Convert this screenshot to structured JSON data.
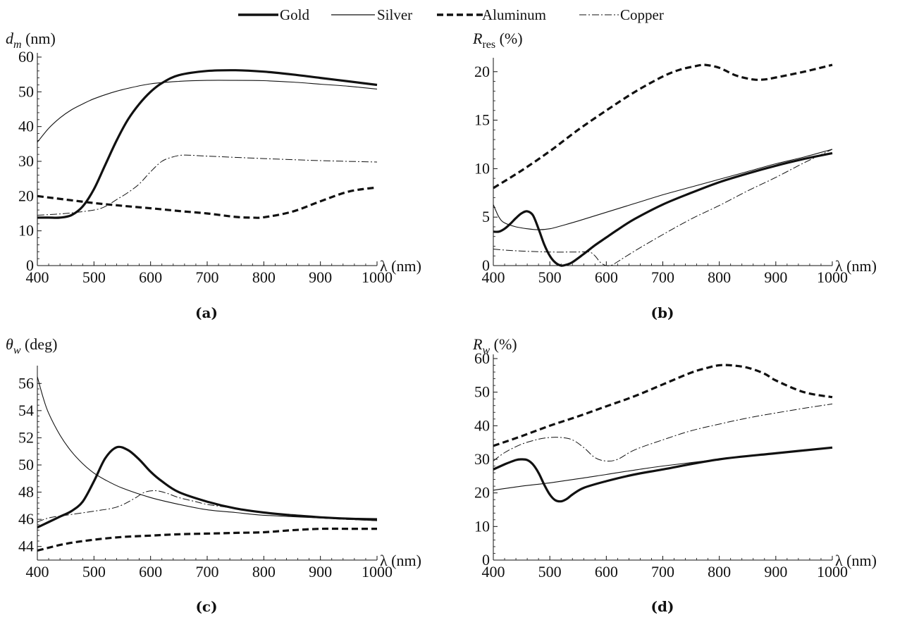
{
  "legend": [
    {
      "name": "Gold",
      "style": "thick"
    },
    {
      "name": "Silver",
      "style": "thin"
    },
    {
      "name": "Aluminum",
      "style": "dashed"
    },
    {
      "name": "Copper",
      "style": "dashdot"
    }
  ],
  "chart_data": [
    {
      "type": "line",
      "caption": "(a)",
      "ylabel_sym": "d",
      "ylabel_sub": "m",
      "ylabel_unit": " (nm)",
      "xlabel": "λ (nm)",
      "xlim": [
        400,
        1000
      ],
      "ylim": [
        0,
        60
      ],
      "xticks": [
        400,
        500,
        600,
        700,
        800,
        900,
        1000
      ],
      "yticks": [
        0,
        10,
        20,
        30,
        40,
        50,
        60
      ],
      "series": [
        {
          "name": "Gold",
          "style": "thick",
          "x": [
            400,
            420,
            440,
            460,
            480,
            500,
            520,
            540,
            560,
            580,
            600,
            620,
            650,
            700,
            750,
            800,
            850,
            900,
            950,
            1000
          ],
          "y": [
            13.8,
            13.8,
            13.8,
            14.5,
            17,
            22,
            29,
            36,
            42,
            46.5,
            50,
            52.5,
            54.8,
            56,
            56.2,
            55.8,
            55,
            54,
            53,
            52
          ]
        },
        {
          "name": "Silver",
          "style": "thin",
          "x": [
            400,
            420,
            440,
            460,
            480,
            500,
            530,
            560,
            600,
            650,
            700,
            750,
            800,
            850,
            900,
            950,
            1000
          ],
          "y": [
            35.5,
            39.5,
            42.5,
            44.8,
            46.5,
            48,
            49.7,
            51,
            52.3,
            53,
            53.3,
            53.3,
            53.2,
            52.8,
            52.2,
            51.6,
            50.8
          ]
        },
        {
          "name": "Aluminum",
          "style": "dashed",
          "x": [
            400,
            450,
            500,
            550,
            600,
            650,
            700,
            750,
            780,
            800,
            850,
            900,
            950,
            1000
          ],
          "y": [
            20,
            19,
            18,
            17.2,
            16.5,
            15.7,
            15,
            14,
            13.8,
            13.9,
            15.5,
            18.5,
            21.3,
            22.5
          ]
        },
        {
          "name": "Copper",
          "style": "dashdot",
          "x": [
            400,
            450,
            500,
            520,
            540,
            560,
            580,
            600,
            620,
            640,
            660,
            700,
            800,
            900,
            1000
          ],
          "y": [
            14.5,
            15,
            16,
            17,
            19,
            21,
            23.5,
            27,
            30,
            31.3,
            31.8,
            31.5,
            30.8,
            30.2,
            29.8
          ]
        }
      ]
    },
    {
      "type": "line",
      "caption": "(b)",
      "ylabel_sym": "R",
      "ylabel_sub": "res",
      "ylabel_unit": " (%)",
      "xlabel": "λ (nm)",
      "xlim": [
        400,
        1000
      ],
      "ylim": [
        0,
        21
      ],
      "xticks": [
        400,
        500,
        600,
        700,
        800,
        900,
        1000
      ],
      "yticks": [
        0,
        5,
        10,
        15,
        20
      ],
      "series": [
        {
          "name": "Gold",
          "style": "thick",
          "x": [
            400,
            410,
            420,
            430,
            440,
            450,
            460,
            470,
            480,
            490,
            500,
            510,
            520,
            530,
            540,
            560,
            580,
            600,
            620,
            650,
            700,
            750,
            800,
            850,
            900,
            950,
            1000
          ],
          "y": [
            3.5,
            3.5,
            3.8,
            4.3,
            4.9,
            5.4,
            5.6,
            5.2,
            3.8,
            2.2,
            1,
            0.3,
            0,
            0.1,
            0.35,
            1.2,
            2.1,
            2.9,
            3.7,
            4.8,
            6.3,
            7.5,
            8.6,
            9.5,
            10.3,
            11,
            11.6
          ]
        },
        {
          "name": "Silver",
          "style": "thin",
          "x": [
            400,
            410,
            420,
            440,
            460,
            480,
            500,
            520,
            550,
            600,
            650,
            700,
            750,
            800,
            850,
            900,
            950,
            1000
          ],
          "y": [
            6.3,
            5,
            4.4,
            4,
            3.8,
            3.7,
            3.8,
            4.1,
            4.6,
            5.5,
            6.4,
            7.3,
            8.1,
            8.9,
            9.7,
            10.5,
            11.2,
            12
          ]
        },
        {
          "name": "Aluminum",
          "style": "dashed",
          "x": [
            400,
            450,
            500,
            550,
            600,
            650,
            700,
            730,
            760,
            775,
            800,
            830,
            860,
            880,
            900,
            950,
            1000
          ],
          "y": [
            8,
            9.8,
            11.8,
            14,
            16,
            17.9,
            19.5,
            20.2,
            20.6,
            20.7,
            20.4,
            19.6,
            19.2,
            19.2,
            19.4,
            20,
            20.7
          ]
        },
        {
          "name": "Copper",
          "style": "dashdot",
          "x": [
            400,
            420,
            450,
            500,
            550,
            570,
            580,
            590,
            600,
            610,
            620,
            650,
            700,
            750,
            800,
            850,
            900,
            950,
            1000
          ],
          "y": [
            1.7,
            1.6,
            1.5,
            1.4,
            1.4,
            1.4,
            1,
            0.3,
            0,
            0.05,
            0.4,
            1.5,
            3.2,
            4.8,
            6.2,
            7.7,
            9.1,
            10.6,
            12
          ]
        }
      ]
    },
    {
      "type": "line",
      "caption": "(c)",
      "ylabel_sym": "θ",
      "ylabel_sub": "w",
      "ylabel_unit": " (deg)",
      "xlabel": "λ (nm)",
      "xlim": [
        400,
        1000
      ],
      "ylim": [
        43,
        57
      ],
      "xticks": [
        400,
        500,
        600,
        700,
        800,
        900,
        1000
      ],
      "yticks": [
        44,
        46,
        48,
        50,
        52,
        54,
        56
      ],
      "series": [
        {
          "name": "Gold",
          "style": "thick",
          "x": [
            400,
            420,
            440,
            460,
            480,
            500,
            520,
            540,
            560,
            580,
            600,
            620,
            650,
            700,
            750,
            800,
            850,
            900,
            950,
            1000
          ],
          "y": [
            45.4,
            45.8,
            46.2,
            46.6,
            47.3,
            48.8,
            50.5,
            51.3,
            51.1,
            50.4,
            49.5,
            48.8,
            48,
            47.3,
            46.8,
            46.5,
            46.3,
            46.15,
            46.05,
            46
          ]
        },
        {
          "name": "Silver",
          "style": "thin",
          "x": [
            400,
            410,
            420,
            440,
            460,
            480,
            500,
            520,
            550,
            600,
            650,
            700,
            750,
            800,
            900,
            1000
          ],
          "y": [
            56.5,
            55,
            53.8,
            52.2,
            51,
            50.1,
            49.4,
            48.9,
            48.3,
            47.6,
            47.1,
            46.7,
            46.5,
            46.3,
            46.1,
            45.9
          ]
        },
        {
          "name": "Aluminum",
          "style": "dashed",
          "x": [
            400,
            450,
            500,
            550,
            600,
            650,
            700,
            750,
            800,
            850,
            900,
            950,
            1000
          ],
          "y": [
            43.7,
            44.2,
            44.5,
            44.7,
            44.8,
            44.9,
            44.95,
            45,
            45.05,
            45.2,
            45.3,
            45.3,
            45.3
          ]
        },
        {
          "name": "Copper",
          "style": "dashdot",
          "x": [
            400,
            420,
            450,
            500,
            540,
            570,
            590,
            610,
            630,
            650,
            680,
            700,
            750,
            800,
            900,
            1000
          ],
          "y": [
            45.8,
            46.1,
            46.3,
            46.6,
            46.9,
            47.5,
            48,
            48.1,
            47.9,
            47.6,
            47.3,
            47.1,
            46.8,
            46.5,
            46.1,
            45.9
          ]
        }
      ]
    },
    {
      "type": "line",
      "caption": "(d)",
      "ylabel_sym": "R",
      "ylabel_sub": "w",
      "ylabel_unit": " (%)",
      "xlabel": "λ (nm)",
      "xlim": [
        400,
        1000
      ],
      "ylim": [
        0,
        60
      ],
      "xticks": [
        400,
        500,
        600,
        700,
        800,
        900,
        1000
      ],
      "yticks": [
        0,
        10,
        20,
        30,
        40,
        50,
        60
      ],
      "series": [
        {
          "name": "Gold",
          "style": "thick",
          "x": [
            400,
            420,
            440,
            450,
            460,
            470,
            480,
            490,
            500,
            510,
            520,
            530,
            540,
            560,
            600,
            650,
            700,
            800,
            900,
            1000
          ],
          "y": [
            27,
            28.5,
            29.8,
            30,
            29.8,
            28.5,
            26,
            22.5,
            19.5,
            17.8,
            17.5,
            18.2,
            19.5,
            21.5,
            23.5,
            25.5,
            27,
            30,
            31.8,
            33.5
          ]
        },
        {
          "name": "Silver",
          "style": "thin",
          "x": [
            400,
            450,
            500,
            550,
            600,
            650,
            700,
            800,
            900,
            1000
          ],
          "y": [
            20.8,
            22,
            23,
            24.2,
            25.5,
            26.8,
            28,
            30,
            31.8,
            33.5
          ]
        },
        {
          "name": "Aluminum",
          "style": "dashed",
          "x": [
            400,
            450,
            500,
            550,
            600,
            650,
            700,
            750,
            780,
            800,
            820,
            850,
            880,
            900,
            950,
            1000
          ],
          "y": [
            34,
            36.9,
            40,
            42.8,
            45.8,
            48.8,
            52.3,
            55.8,
            57.3,
            58,
            58,
            57.3,
            55.5,
            53.5,
            50,
            48.5
          ]
        },
        {
          "name": "Copper",
          "style": "dashdot",
          "x": [
            400,
            420,
            450,
            480,
            500,
            520,
            540,
            560,
            580,
            600,
            620,
            650,
            700,
            750,
            800,
            850,
            900,
            950,
            1000
          ],
          "y": [
            29.5,
            32,
            34.5,
            36,
            36.5,
            36.5,
            35.8,
            33.5,
            30.5,
            29.5,
            30,
            32.8,
            35.8,
            38.5,
            40.5,
            42.3,
            43.8,
            45.2,
            46.5
          ]
        }
      ]
    }
  ]
}
